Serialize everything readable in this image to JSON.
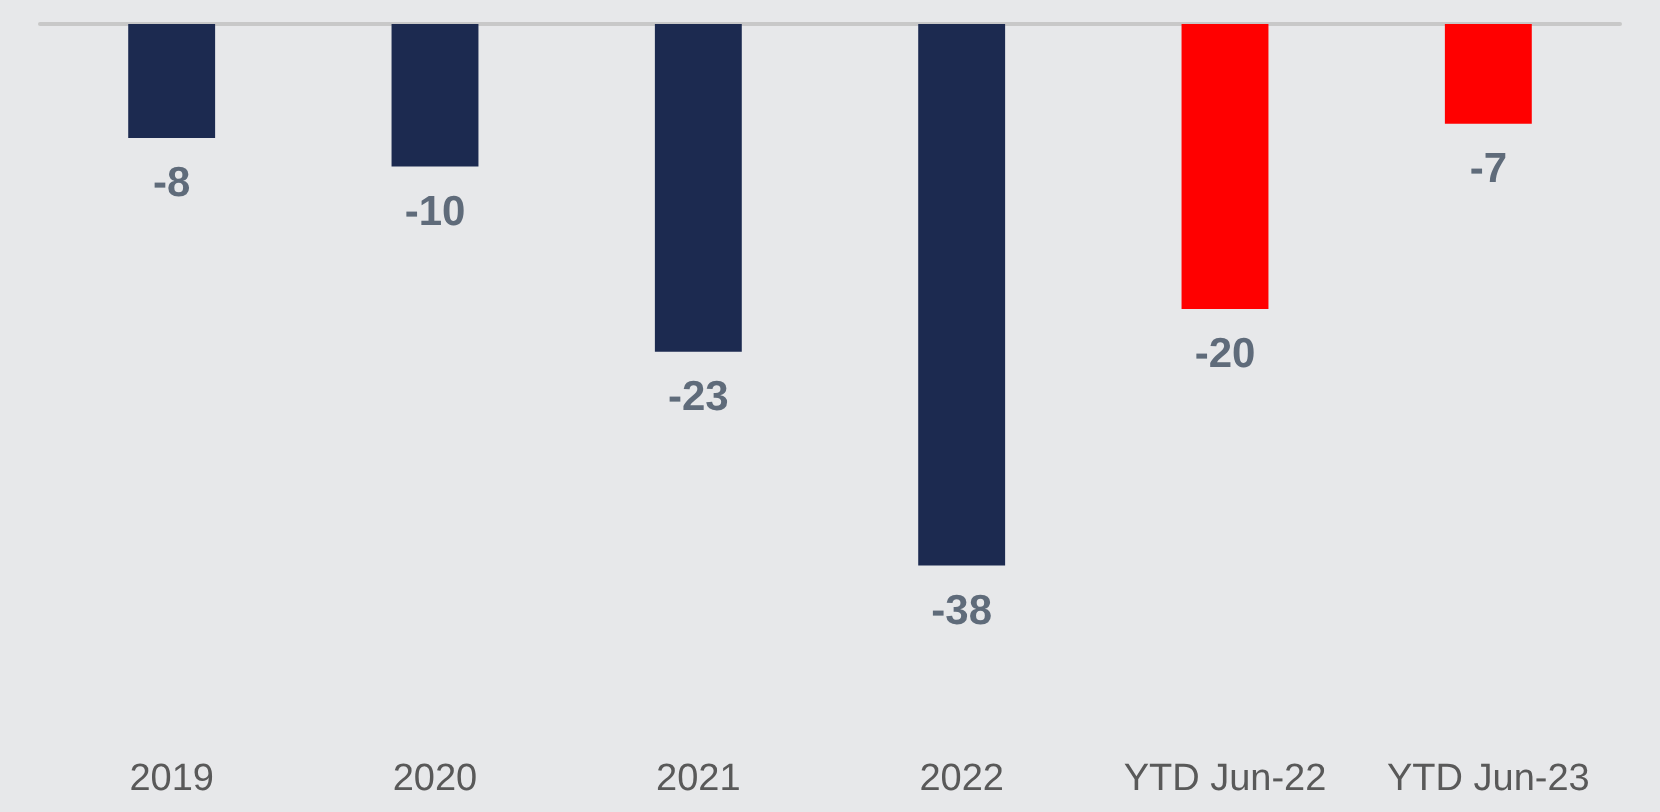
{
  "chart_data": {
    "type": "bar",
    "categories": [
      "2019",
      "2020",
      "2021",
      "2022",
      "YTD Jun-22",
      "YTD Jun-23"
    ],
    "values": [
      -8,
      -10,
      -23,
      -38,
      -20,
      -7
    ],
    "colors": [
      "#1c2a50",
      "#1c2a50",
      "#1c2a50",
      "#1c2a50",
      "#ff0000",
      "#ff0000"
    ],
    "data_labels": true,
    "grid": false
  }
}
